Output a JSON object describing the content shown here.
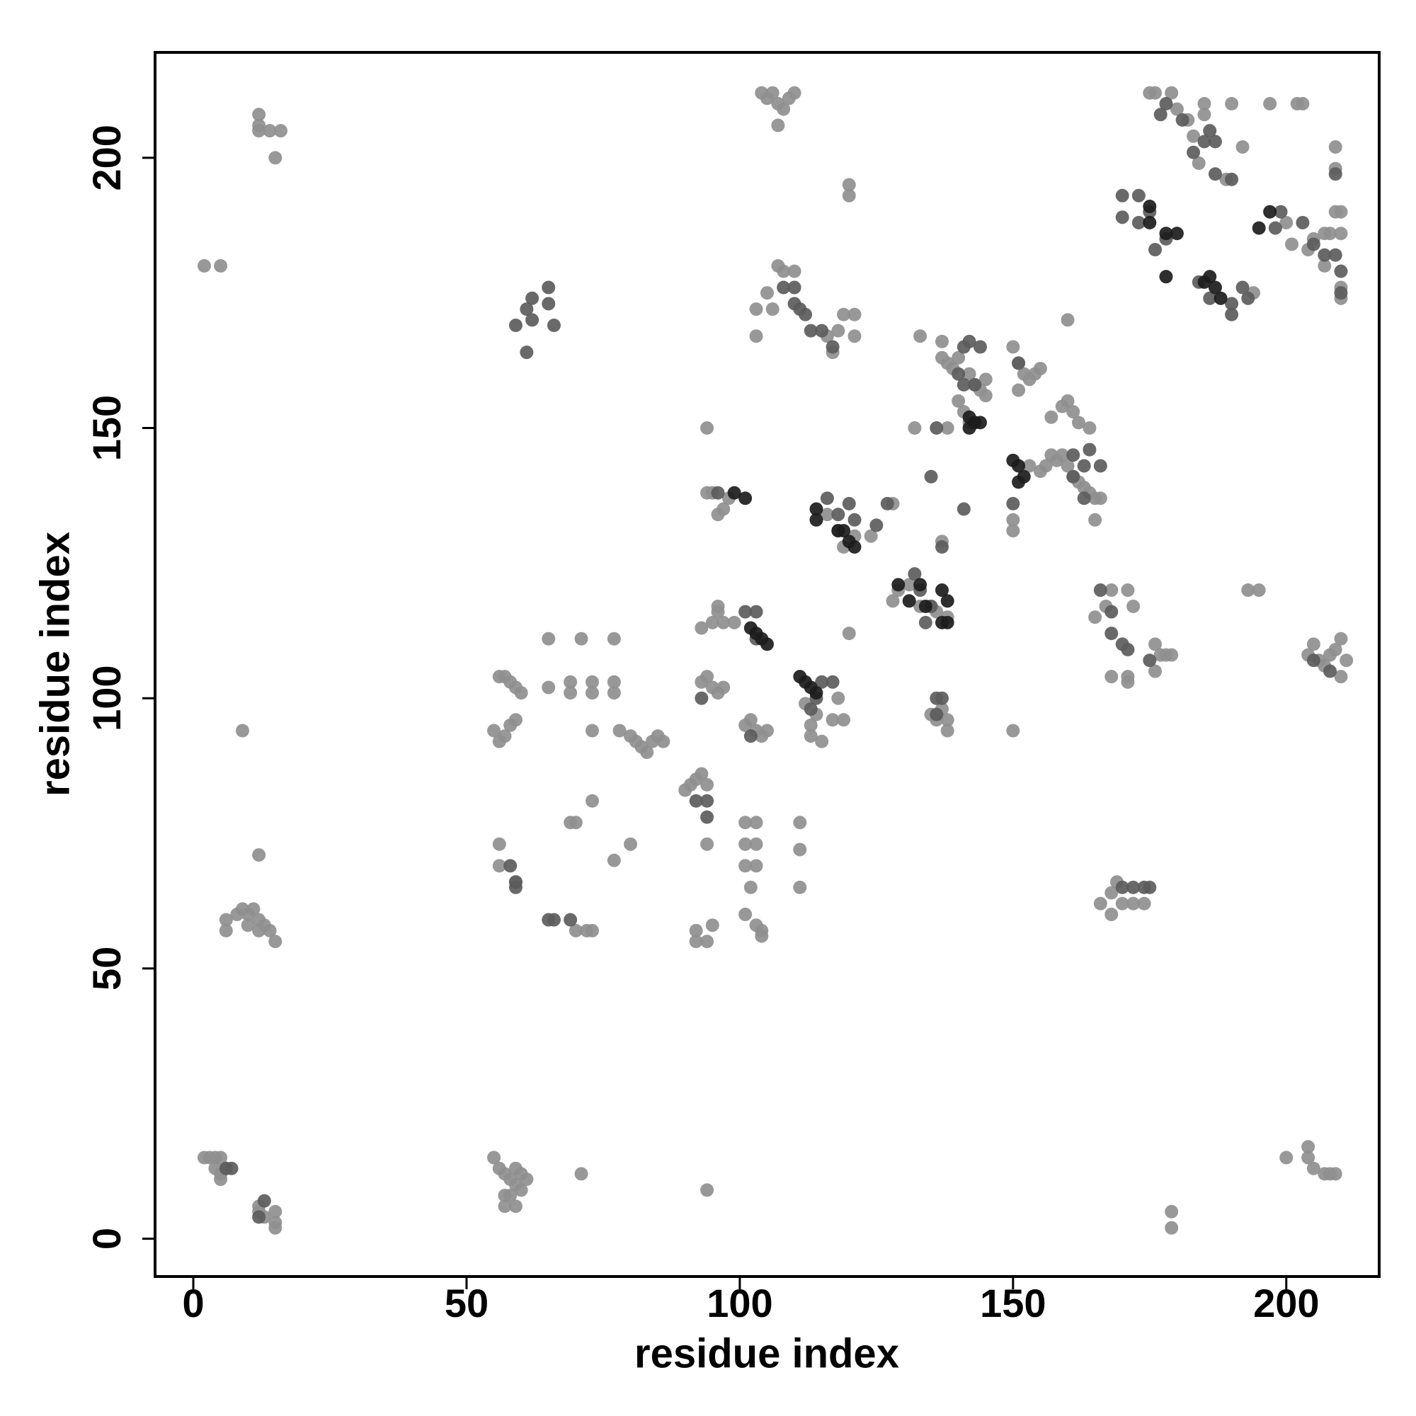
{
  "chart_data": {
    "type": "scatter",
    "x_label": "residue index",
    "y_label": "residue index",
    "xlim": [
      -7,
      217
    ],
    "ylim": [
      -7,
      219.5
    ],
    "xticks": [
      0,
      50,
      100,
      150,
      200
    ],
    "yticks": [
      0,
      50,
      100,
      150,
      200
    ],
    "grid": false,
    "series": [
      {
        "color": "#8f8f8f",
        "x": [
          2,
          3,
          4,
          5,
          5,
          4,
          5,
          6,
          12,
          13,
          15,
          15,
          15,
          12,
          9,
          12
        ],
        "values": [
          15,
          15,
          15,
          15,
          12,
          13,
          11,
          13,
          5,
          4,
          5,
          3,
          2,
          6,
          94,
          71
        ]
      },
      {
        "color": "#8f8f8f",
        "x": [
          6,
          6,
          8,
          9,
          10,
          11,
          12,
          13,
          14,
          15,
          10,
          12,
          2,
          5,
          12,
          12,
          12,
          14,
          16,
          15
        ],
        "values": [
          59,
          57,
          60,
          61,
          60,
          61,
          59,
          58,
          57,
          55,
          58,
          57,
          180,
          180,
          208,
          206,
          205,
          205,
          205,
          200
        ]
      },
      {
        "color": "#8f8f8f",
        "x": [
          55,
          56,
          57,
          58,
          59,
          60,
          61,
          59,
          60,
          57,
          59,
          57,
          58,
          71,
          94
        ],
        "values": [
          15,
          13,
          12,
          11,
          10,
          9,
          11,
          13,
          12,
          8,
          6,
          6,
          8,
          12,
          9
        ]
      },
      {
        "color": "#8f8f8f",
        "x": [
          55,
          56,
          57,
          58,
          59,
          56,
          57,
          58,
          59,
          60,
          65,
          71,
          77,
          65,
          69,
          69,
          73,
          73,
          77,
          77
        ],
        "values": [
          94,
          92,
          93,
          95,
          96,
          104,
          104,
          103,
          102,
          101,
          111,
          111,
          111,
          102,
          103,
          101,
          103,
          101,
          103,
          101
        ]
      },
      {
        "color": "#8f8f8f",
        "x": [
          73,
          78,
          80,
          81,
          82,
          83,
          84,
          85,
          86,
          90,
          91,
          92,
          93,
          94,
          69,
          70,
          73,
          80,
          77,
          56,
          56,
          59,
          70,
          72,
          73
        ],
        "values": [
          94,
          94,
          93,
          92,
          91,
          90,
          92,
          93,
          92,
          83,
          84,
          85,
          86,
          84,
          77,
          77,
          81,
          73,
          70,
          73,
          69,
          66,
          57,
          57,
          57
        ]
      },
      {
        "color": "#8f8f8f",
        "x": [
          92,
          92,
          94,
          95,
          94,
          101,
          103,
          101,
          103,
          101,
          103,
          102,
          101,
          103,
          104,
          104,
          111,
          111,
          111
        ],
        "values": [
          57,
          55,
          55,
          58,
          73,
          77,
          77,
          73,
          73,
          69,
          69,
          65,
          60,
          58,
          57,
          56,
          77,
          72,
          65
        ]
      },
      {
        "color": "#8f8f8f",
        "x": [
          94,
          94,
          95,
          96,
          97,
          98,
          96,
          96,
          93,
          95,
          97,
          99,
          93,
          94,
          95,
          96,
          97,
          101,
          102,
          103,
          104,
          105
        ],
        "values": [
          150,
          138,
          138,
          134,
          135,
          137,
          117,
          116,
          113,
          114,
          114,
          114,
          103,
          104,
          102,
          101,
          102,
          95,
          96,
          94,
          93,
          94
        ]
      },
      {
        "color": "#8f8f8f",
        "x": [
          104,
          105,
          106,
          107,
          108,
          109,
          110,
          107,
          120,
          120,
          103,
          105,
          106,
          107,
          108,
          110,
          103,
          116,
          118,
          119,
          121,
          121,
          117
        ],
        "values": [
          212,
          211,
          212,
          210,
          209,
          211,
          212,
          206,
          195,
          193,
          172,
          175,
          172,
          180,
          179,
          179,
          167,
          167,
          168,
          171,
          171,
          167,
          164
        ]
      },
      {
        "color": "#8f8f8f",
        "x": [
          133,
          137,
          137,
          138,
          139,
          140,
          142,
          143,
          144,
          145,
          145,
          140,
          141,
          142,
          138,
          132,
          150,
          151,
          152,
          153,
          154,
          155,
          151
        ],
        "values": [
          167,
          166,
          163,
          162,
          161,
          163,
          160,
          158,
          157,
          156,
          159,
          155,
          153,
          151,
          150,
          150,
          165,
          162,
          160,
          159,
          160,
          161,
          157
        ]
      },
      {
        "color": "#8f8f8f",
        "x": [
          160,
          157,
          159,
          160,
          161,
          162,
          164,
          153,
          155,
          156,
          157,
          158,
          159,
          160,
          161,
          162,
          163,
          164,
          165,
          166,
          150,
          150,
          165
        ],
        "values": [
          170,
          152,
          154,
          155,
          153,
          151,
          150,
          143,
          142,
          143,
          145,
          144,
          145,
          143,
          141,
          140,
          139,
          138,
          137,
          137,
          133,
          131,
          133
        ]
      },
      {
        "color": "#8f8f8f",
        "x": [
          128,
          129,
          131,
          133,
          135,
          136,
          138,
          137,
          135,
          138,
          138,
          136,
          113,
          113,
          115,
          114,
          112,
          117,
          119,
          118,
          116,
          118,
          119,
          121,
          124,
          120,
          128,
          137,
          150,
          193,
          195
        ],
        "values": [
          118,
          120,
          121,
          117,
          117,
          116,
          115,
          98,
          97,
          96,
          94,
          96,
          95,
          93,
          92,
          97,
          99,
          96,
          96,
          100,
          134,
          131,
          128,
          130,
          130,
          112,
          136,
          129,
          94,
          120,
          120
        ]
      },
      {
        "color": "#8f8f8f",
        "x": [
          165,
          167,
          168,
          171,
          172,
          176,
          177,
          178,
          179,
          168,
          171,
          176,
          171,
          166,
          168,
          168,
          170,
          172,
          174,
          169
        ],
        "values": [
          115,
          117,
          120,
          120,
          117,
          110,
          108,
          108,
          108,
          104,
          104,
          105,
          103,
          62,
          64,
          60,
          62,
          62,
          62,
          66
        ]
      },
      {
        "color": "#8f8f8f",
        "x": [
          175,
          176,
          179,
          180,
          182,
          183,
          185,
          185,
          190,
          197,
          202,
          203,
          184,
          189,
          192,
          200,
          201,
          204,
          205,
          207,
          208,
          210,
          210,
          209,
          210,
          210,
          207
        ],
        "values": [
          212,
          212,
          212,
          209,
          207,
          204,
          210,
          208,
          210,
          210,
          210,
          210,
          199,
          196,
          202,
          188,
          184,
          183,
          185,
          186,
          186,
          190,
          186,
          190,
          176,
          174,
          180
        ]
      },
      {
        "color": "#8f8f8f",
        "x": [
          204,
          205,
          206,
          207,
          208,
          209,
          210,
          211,
          210,
          200,
          204,
          204,
          205,
          207,
          208,
          209,
          179,
          179,
          194,
          209,
          209
        ],
        "values": [
          108,
          110,
          107,
          106,
          108,
          109,
          111,
          107,
          104,
          15,
          17,
          15,
          13,
          12,
          12,
          12,
          5,
          2,
          175,
          202,
          198
        ]
      },
      {
        "color": "#5c5c5c",
        "x": [
          6,
          7,
          13,
          12,
          58,
          59,
          59,
          65,
          66,
          69,
          61,
          62,
          62,
          65,
          65,
          66,
          61,
          59,
          92,
          94,
          94,
          93,
          96,
          102,
          103,
          101,
          103
        ],
        "values": [
          13,
          13,
          7,
          4,
          69,
          66,
          65,
          59,
          59,
          59,
          172,
          174,
          170,
          176,
          173,
          169,
          164,
          169,
          81,
          81,
          78,
          100,
          138,
          93,
          116,
          116,
          111
        ]
      },
      {
        "color": "#5c5c5c",
        "x": [
          108,
          110,
          110,
          111,
          112,
          113,
          115,
          117,
          114,
          115,
          117,
          113,
          116,
          118,
          120,
          121,
          125,
          127,
          132,
          133,
          135,
          134,
          135,
          137,
          141
        ],
        "values": [
          176,
          176,
          173,
          172,
          171,
          168,
          168,
          165,
          100,
          103,
          103,
          98,
          137,
          134,
          136,
          133,
          132,
          136,
          123,
          120,
          117,
          114,
          141,
          128,
          135
        ]
      },
      {
        "color": "#5c5c5c",
        "x": [
          136,
          137,
          136,
          141,
          142,
          144,
          140,
          141,
          143,
          136,
          151,
          150,
          161,
          163,
          164,
          166,
          163,
          161,
          166,
          168,
          168,
          171,
          170,
          175,
          170,
          172,
          174,
          175
        ],
        "values": [
          100,
          100,
          97,
          165,
          166,
          165,
          160,
          158,
          158,
          150,
          162,
          136,
          141,
          143,
          146,
          143,
          137,
          145,
          120,
          112,
          116,
          109,
          110,
          107,
          65,
          65,
          65,
          65
        ]
      },
      {
        "color": "#5c5c5c",
        "x": [
          173,
          173,
          175,
          178,
          176,
          170,
          170,
          178,
          177,
          181,
          183,
          185,
          187,
          187,
          190,
          186,
          192,
          184,
          186,
          190,
          193,
          190,
          198,
          199,
          203,
          205,
          207,
          210,
          209,
          209,
          210,
          205,
          208
        ],
        "values": [
          193,
          188,
          190,
          185,
          183,
          193,
          189,
          210,
          208,
          207,
          201,
          203,
          203,
          197,
          196,
          205,
          176,
          177,
          174,
          173,
          174,
          171,
          187,
          190,
          188,
          184,
          182,
          179,
          182,
          197,
          175,
          107,
          105
        ]
      },
      {
        "color": "#1c1c1c",
        "x": [
          99,
          101,
          102,
          103,
          104,
          105,
          111,
          112,
          113,
          114,
          114,
          114,
          119,
          120,
          121,
          118,
          129,
          131,
          133,
          134,
          137,
          138,
          137,
          138,
          142,
          143,
          144,
          142,
          150,
          151,
          152,
          151,
          178,
          186,
          185,
          187,
          188,
          197,
          195,
          175,
          175,
          178,
          180
        ],
        "values": [
          138,
          137,
          113,
          112,
          111,
          110,
          104,
          103,
          102,
          101,
          135,
          133,
          131,
          129,
          128,
          131,
          121,
          118,
          121,
          117,
          120,
          118,
          114,
          114,
          152,
          151,
          151,
          150,
          144,
          143,
          141,
          140,
          178,
          178,
          177,
          176,
          174,
          190,
          187,
          191,
          188,
          186,
          186
        ]
      }
    ]
  }
}
